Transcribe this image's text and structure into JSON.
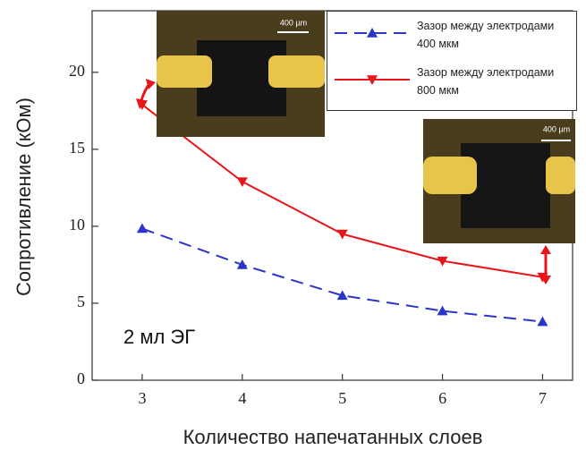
{
  "chart_data": {
    "type": "line",
    "x_label": "Количество напечатанных слоев",
    "y_label": "Сопротивление  (кОм)",
    "x": [
      3,
      4,
      5,
      6,
      7
    ],
    "xlim": [
      2.5,
      7.3
    ],
    "xticks": [
      3,
      4,
      5,
      6,
      7
    ],
    "ylim": [
      0,
      24
    ],
    "yticks": [
      0,
      5,
      10,
      15,
      20
    ],
    "series": [
      {
        "name": "Зазор между электродами 400 мкм",
        "color": "#2b35c9",
        "marker": "triangle-up",
        "dashed": true,
        "values": [
          9.85,
          7.5,
          5.5,
          4.5,
          3.8
        ]
      },
      {
        "name": "Зазор между электродами 800 мкм",
        "color": "#e8151b",
        "marker": "triangle-down",
        "dashed": false,
        "values": [
          17.9,
          12.9,
          9.5,
          7.75,
          6.7
        ]
      }
    ],
    "annotations": [
      "2 мл ЭГ",
      "400 µm",
      "400 µm"
    ]
  }
}
